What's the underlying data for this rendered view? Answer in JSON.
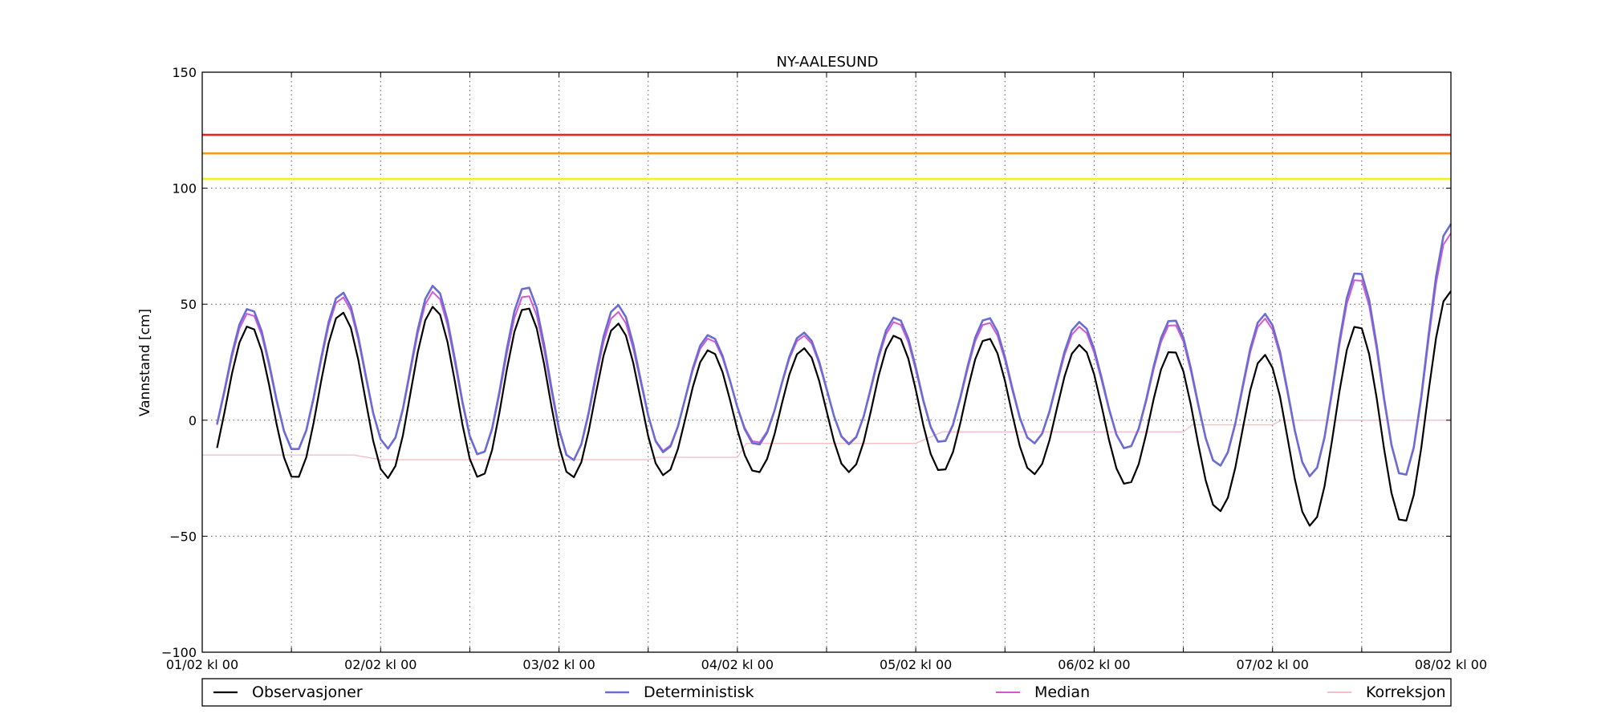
{
  "chart_data": {
    "type": "line",
    "title": "NY-AALESUND",
    "ylabel": "Vannstand [cm]",
    "xlabel": "",
    "ylim": [
      -100,
      150
    ],
    "xlim": [
      0,
      7
    ],
    "x_unit": "days since 01/02 kl 00",
    "yticks": [
      -100,
      -50,
      0,
      50,
      100,
      150
    ],
    "ytick_labels": [
      "−100",
      "−50",
      "0",
      "50",
      "100",
      "150"
    ],
    "xticks": [
      0,
      1,
      2,
      3,
      4,
      5,
      6,
      7
    ],
    "xtick_labels": [
      "01/02 kl 00",
      "02/02 kl 00",
      "03/02 kl 00",
      "04/02 kl 00",
      "05/02 kl 00",
      "06/02 kl 00",
      "07/02 kl 00",
      "08/02 kl 00"
    ],
    "grid": true,
    "legend_position": "bottom",
    "thresholds": [
      {
        "value": 123,
        "color": "#e8261f"
      },
      {
        "value": 115,
        "color": "#f39c1b"
      },
      {
        "value": 104,
        "color": "#f5f219"
      }
    ],
    "tidal": {
      "period_hours": 12.42,
      "phase0_hours": 6.3,
      "step_hours": 1
    },
    "series": [
      {
        "name": "Observasjoner",
        "color": "#000000",
        "width": 2.2,
        "mean": [
          [
            0,
            6
          ],
          [
            1,
            12
          ],
          [
            2,
            12
          ],
          [
            3,
            2
          ],
          [
            4,
            8
          ],
          [
            5,
            4
          ],
          [
            6,
            -9
          ],
          [
            7,
            6
          ]
        ],
        "amp": [
          [
            0,
            32
          ],
          [
            1,
            37
          ],
          [
            2,
            37
          ],
          [
            3,
            25
          ],
          [
            4,
            30
          ],
          [
            5,
            28
          ],
          [
            6,
            37
          ],
          [
            7,
            50
          ]
        ]
      },
      {
        "name": "Deterministisk",
        "color": "#6b6bd6",
        "width": 2.6,
        "mean": [
          [
            0,
            15
          ],
          [
            1,
            23
          ],
          [
            2,
            20
          ],
          [
            3,
            11
          ],
          [
            4,
            18
          ],
          [
            5,
            16
          ],
          [
            6,
            11
          ],
          [
            7,
            30
          ]
        ],
        "amp": [
          [
            0,
            30
          ],
          [
            1,
            35
          ],
          [
            2,
            38
          ],
          [
            3,
            22
          ],
          [
            4,
            28
          ],
          [
            5,
            26
          ],
          [
            6,
            35
          ],
          [
            7,
            55
          ]
        ]
      },
      {
        "name": "Median",
        "color": "#d15ad1",
        "width": 2.0,
        "mean": [
          [
            0,
            14
          ],
          [
            1,
            22
          ],
          [
            2,
            18
          ],
          [
            3,
            11
          ],
          [
            4,
            17
          ],
          [
            5,
            15
          ],
          [
            6,
            10
          ],
          [
            7,
            28
          ]
        ],
        "amp": [
          [
            0,
            29
          ],
          [
            1,
            34
          ],
          [
            2,
            36
          ],
          [
            3,
            21
          ],
          [
            4,
            27
          ],
          [
            5,
            25
          ],
          [
            6,
            34
          ],
          [
            7,
            53
          ]
        ]
      },
      {
        "name": "Korreksjon",
        "color": "#f4c0c8",
        "width": 1.4,
        "steps": [
          [
            0,
            -15
          ],
          [
            0.85,
            -15
          ],
          [
            1.0,
            -17
          ],
          [
            2.5,
            -17
          ],
          [
            2.55,
            -16
          ],
          [
            3.0,
            -16
          ],
          [
            3.05,
            -10
          ],
          [
            4.0,
            -10
          ],
          [
            4.15,
            -5
          ],
          [
            5.5,
            -5
          ],
          [
            5.55,
            -2
          ],
          [
            6.0,
            -2
          ],
          [
            6.05,
            0
          ],
          [
            7.0,
            0
          ]
        ]
      }
    ]
  }
}
